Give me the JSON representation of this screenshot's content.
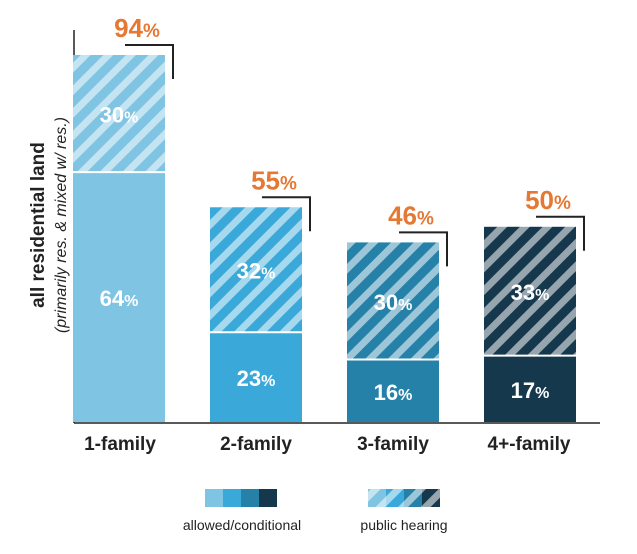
{
  "chart_data": {
    "type": "bar",
    "stacked": true,
    "ylabel": "all residential land",
    "ylabel_sub": "(primarily res. & mixed w/ res.)",
    "categories": [
      "1-family",
      "2-family",
      "3-family",
      "4+-family"
    ],
    "series": [
      {
        "name": "allowed/conditional",
        "values": [
          64,
          23,
          16,
          17
        ],
        "labels": [
          "64%",
          "23%",
          "16%",
          "17%"
        ]
      },
      {
        "name": "public hearing",
        "values": [
          30,
          32,
          30,
          33
        ],
        "labels": [
          "30%",
          "32%",
          "30%",
          "33%"
        ]
      }
    ],
    "totals": [
      94,
      55,
      46,
      50
    ],
    "total_labels": [
      "94%",
      "55%",
      "46%",
      "50%"
    ],
    "ylim": [
      0,
      100
    ],
    "grid": false,
    "legend_position": "bottom",
    "colors": {
      "bars": [
        "#7fc4e3",
        "#3aa9d9",
        "#2681a9",
        "#16384c"
      ],
      "total_label": "#e57833",
      "axis": "#222222",
      "stripe": "#ffffff"
    }
  },
  "legend": {
    "allowed_label": "allowed/conditional",
    "hearing_label": "public hearing"
  }
}
